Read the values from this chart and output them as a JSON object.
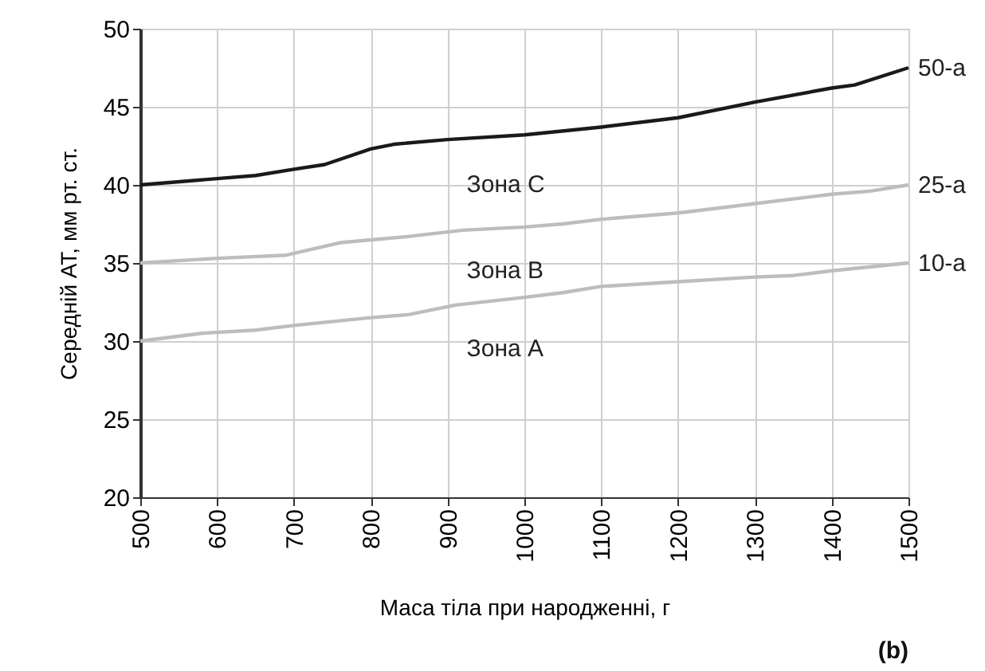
{
  "chart_data": {
    "type": "line",
    "xlabel": "Маса тіла при народженні, г",
    "ylabel": "Середній АТ, мм рт. ст.",
    "xlim": [
      500,
      1500
    ],
    "xticks": [
      500,
      600,
      700,
      800,
      900,
      1000,
      1100,
      1200,
      1300,
      1400,
      1500
    ],
    "ylim": [
      20,
      50
    ],
    "yticks": [
      20,
      25,
      30,
      35,
      40,
      45,
      50
    ],
    "grid": true,
    "marker": "none",
    "line_style": "solid",
    "series": [
      {
        "name": "50-а",
        "color": "#1a1a1a",
        "x": [
          500,
          600,
          650,
          700,
          740,
          800,
          830,
          900,
          1000,
          1100,
          1200,
          1300,
          1400,
          1430,
          1500
        ],
        "values": [
          40,
          40.4,
          40.6,
          41,
          41.3,
          42.3,
          42.6,
          42.9,
          43.2,
          43.7,
          44.3,
          45.3,
          46.2,
          46.4,
          47.5
        ]
      },
      {
        "name": "25-а",
        "color": "#bdbdbd",
        "x": [
          500,
          600,
          690,
          760,
          850,
          920,
          1000,
          1050,
          1100,
          1200,
          1300,
          1400,
          1450,
          1500
        ],
        "values": [
          35,
          35.3,
          35.5,
          36.3,
          36.7,
          37.1,
          37.3,
          37.5,
          37.8,
          38.2,
          38.8,
          39.4,
          39.6,
          40
        ]
      },
      {
        "name": "10-а",
        "color": "#bdbdbd",
        "x": [
          500,
          580,
          650,
          700,
          800,
          850,
          910,
          1000,
          1050,
          1100,
          1200,
          1300,
          1350,
          1400,
          1500
        ],
        "values": [
          30,
          30.5,
          30.7,
          31,
          31.5,
          31.7,
          32.3,
          32.8,
          33.1,
          33.5,
          33.8,
          34.1,
          34.2,
          34.5,
          35
        ]
      }
    ],
    "annotations": [
      "Зона C",
      "Зона B",
      "Зона A",
      "(b)"
    ]
  }
}
